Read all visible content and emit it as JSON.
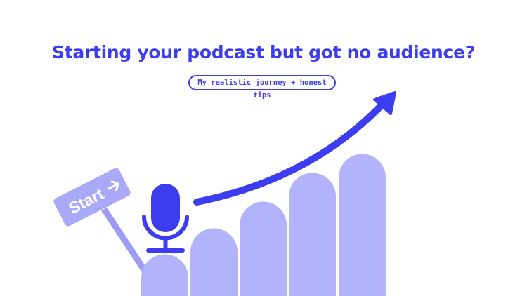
{
  "headline": "Starting your podcast but got no audience?",
  "subtitle": "My realistic journey + honest tips",
  "sign": {
    "label": "Start",
    "icon": "arrow-right-icon"
  },
  "colors": {
    "accent": "#3d3df0",
    "bars": "#b3b3fb",
    "pole": "#9c9cf7",
    "sign": "#a9a9f8"
  },
  "icons": [
    "microphone-icon",
    "trend-arrow-icon"
  ]
}
